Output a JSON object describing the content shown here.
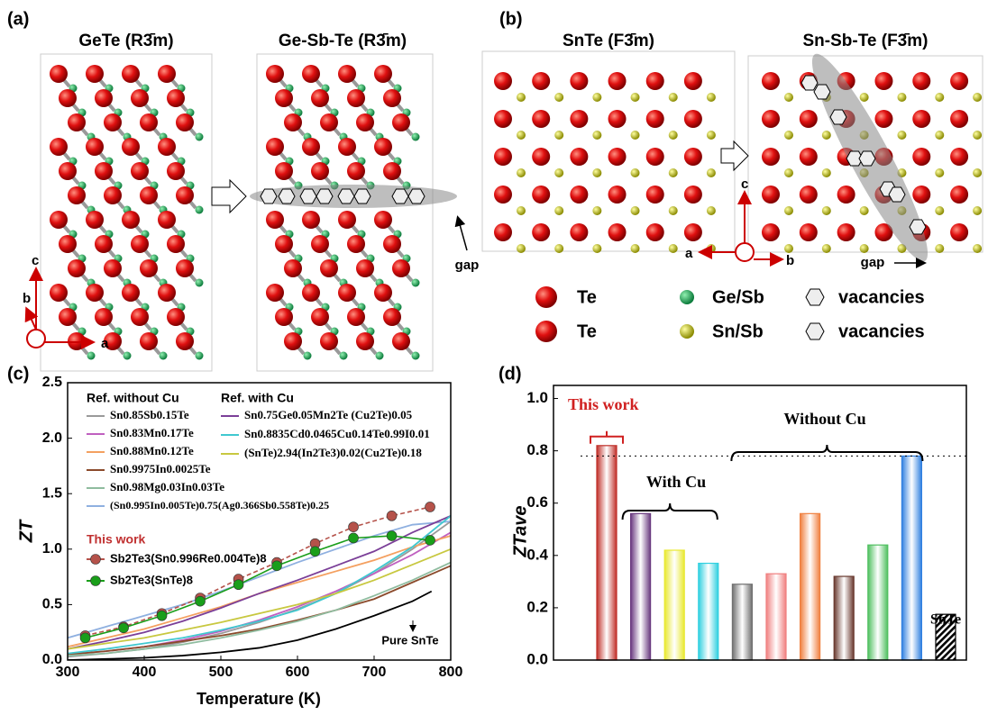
{
  "panels": {
    "a": {
      "label": "(a)",
      "titles": [
        "GeTe (R3̄m)",
        "Ge-Sb-Te (R3̄m)"
      ],
      "axis_labels": [
        "c",
        "b",
        "a"
      ],
      "gap": "gap"
    },
    "b": {
      "label": "(b)",
      "titles": [
        "SnTe (F3̄m)",
        "Sn-Sb-Te (F3̄m)"
      ],
      "axis_labels": [
        "c",
        "a",
        "b"
      ],
      "gap": "gap"
    },
    "legend": [
      "Te",
      "Ge/Sb",
      "vacancies",
      "Te",
      "Sn/Sb",
      "vacancies"
    ]
  },
  "chart_data": [
    {
      "type": "line",
      "label": "(c)",
      "ylabel": "ZT",
      "xlabel": "Temperature (K)",
      "xlim": [
        300,
        800
      ],
      "xticks": [
        300,
        400,
        500,
        600,
        700,
        800
      ],
      "ylim": [
        0,
        2.5
      ],
      "yticks": [
        {
          "value": 0,
          "label": "0.0"
        },
        0.5,
        {
          "value": 1,
          "label": "1.0"
        },
        1.5,
        {
          "value": 2,
          "label": "2.0"
        },
        2.5
      ],
      "legend_headers": [
        "Ref. without Cu",
        "Ref. with Cu",
        "This work"
      ],
      "series": [
        {
          "name": "Sn0.85Sb0.15Te",
          "color": "#9a9a9a",
          "x": [
            300,
            350,
            400,
            450,
            500,
            550,
            600,
            650,
            700,
            750,
            800
          ],
          "values": [
            0.03,
            0.06,
            0.1,
            0.16,
            0.24,
            0.34,
            0.46,
            0.6,
            0.78,
            1.0,
            1.25
          ]
        },
        {
          "name": "Sn0.83Mn0.17Te",
          "color": "#c060c0",
          "x": [
            300,
            350,
            400,
            450,
            500,
            550,
            600,
            650,
            700,
            750,
            800
          ],
          "values": [
            0.05,
            0.08,
            0.12,
            0.18,
            0.26,
            0.36,
            0.48,
            0.62,
            0.78,
            0.95,
            1.15
          ]
        },
        {
          "name": "Sn0.88Mn0.12Te",
          "color": "#f4a060",
          "x": [
            300,
            350,
            400,
            450,
            500,
            550,
            600,
            650,
            700,
            750,
            800
          ],
          "values": [
            0.12,
            0.2,
            0.28,
            0.38,
            0.48,
            0.6,
            0.7,
            0.8,
            0.9,
            1.02,
            1.12
          ]
        },
        {
          "name": "Sn0.9975In0.0025Te",
          "color": "#8b4a2b",
          "x": [
            300,
            350,
            400,
            450,
            500,
            550,
            600,
            650,
            700,
            750,
            800
          ],
          "values": [
            0.05,
            0.08,
            0.12,
            0.17,
            0.22,
            0.28,
            0.36,
            0.45,
            0.55,
            0.7,
            0.85
          ]
        },
        {
          "name": "Sn0.98Mg0.03In0.03Te",
          "color": "#8fbc9f",
          "x": [
            300,
            350,
            400,
            450,
            500,
            550,
            600,
            650,
            700,
            750,
            800
          ],
          "values": [
            0.04,
            0.06,
            0.1,
            0.14,
            0.2,
            0.27,
            0.35,
            0.45,
            0.58,
            0.72,
            0.88
          ]
        },
        {
          "name": "(Sn0.995In0.005Te)0.75(Ag0.366Sb0.558Te)0.25",
          "color": "#8fb0e0",
          "x": [
            300,
            350,
            400,
            450,
            500,
            550,
            600,
            650,
            700,
            750,
            800
          ],
          "values": [
            0.2,
            0.3,
            0.4,
            0.5,
            0.62,
            0.75,
            0.88,
            1.0,
            1.12,
            1.22,
            1.25
          ]
        },
        {
          "name": "Sn0.75Ge0.05Mn2Te (Cu2Te)0.05",
          "color": "#7b3f98",
          "x": [
            300,
            350,
            400,
            450,
            500,
            550,
            600,
            650,
            700,
            750,
            800
          ],
          "values": [
            0.1,
            0.17,
            0.25,
            0.35,
            0.47,
            0.6,
            0.72,
            0.85,
            0.98,
            1.15,
            1.3
          ]
        },
        {
          "name": "Sn0.8835Cd0.0465Cu0.14Te0.99I0.01",
          "color": "#40c8d0",
          "x": [
            300,
            350,
            400,
            450,
            500,
            550,
            600,
            650,
            700,
            750,
            800
          ],
          "values": [
            0.06,
            0.1,
            0.15,
            0.2,
            0.27,
            0.35,
            0.45,
            0.6,
            0.8,
            1.02,
            1.3
          ]
        },
        {
          "name": "(SnTe)2.94(In2Te3)0.02(Cu2Te)0.18",
          "color": "#c8c840",
          "x": [
            300,
            350,
            400,
            450,
            500,
            550,
            600,
            650,
            700,
            750,
            800
          ],
          "values": [
            0.1,
            0.15,
            0.2,
            0.27,
            0.34,
            0.42,
            0.5,
            0.6,
            0.72,
            0.86,
            1.0
          ]
        },
        {
          "name": "Pure SnTe",
          "color": "#000000",
          "x": [
            300,
            350,
            400,
            450,
            500,
            550,
            600,
            650,
            700,
            750,
            775
          ],
          "values": [
            0,
            0.01,
            0.02,
            0.04,
            0.07,
            0.11,
            0.18,
            0.28,
            0.4,
            0.53,
            0.62
          ]
        },
        {
          "name": "Sb2Te3(Sn0.996Re0.004Te)8",
          "color": "#b5524a",
          "marker": true,
          "x": [
            323,
            373,
            423,
            473,
            523,
            573,
            623,
            673,
            723,
            773
          ],
          "values": [
            0.22,
            0.3,
            0.42,
            0.56,
            0.73,
            0.88,
            1.05,
            1.2,
            1.3,
            1.38
          ]
        },
        {
          "name": "Sb2Te3(SnTe)8",
          "color": "#1a9e1a",
          "marker": true,
          "x": [
            323,
            373,
            423,
            473,
            523,
            573,
            623,
            673,
            723,
            773
          ],
          "values": [
            0.2,
            0.29,
            0.4,
            0.53,
            0.68,
            0.85,
            0.98,
            1.1,
            1.12,
            1.08
          ]
        }
      ]
    },
    {
      "type": "bar",
      "label": "(d)",
      "ylabel": "ZTave",
      "categories": [
        null,
        null,
        null,
        null,
        null,
        null,
        null,
        null,
        null,
        null,
        null
      ],
      "values": [
        0.82,
        0.56,
        0.42,
        0.37,
        0.29,
        0.33,
        0.56,
        0.32,
        0.44,
        0.78,
        0.175
      ],
      "colors": [
        "#c0302a",
        "#6a3a80",
        "#e8e830",
        "#30d0e0",
        "#707070",
        "#f08080",
        "#f08040",
        "#6a3a30",
        "#50c060",
        "#3080e0",
        "#000000"
      ],
      "hatched": [
        false,
        false,
        false,
        false,
        false,
        false,
        false,
        false,
        false,
        false,
        true
      ],
      "reference_line": 0.78,
      "ylim": [
        0,
        1.05
      ],
      "yticks": [
        {
          "value": 0,
          "label": "0.0"
        },
        0.2,
        0.4,
        0.6,
        0.8,
        {
          "value": 1,
          "label": "1.0"
        }
      ],
      "annotations": [
        "This work",
        "With Cu",
        "Without Cu",
        "SnTe"
      ]
    }
  ]
}
